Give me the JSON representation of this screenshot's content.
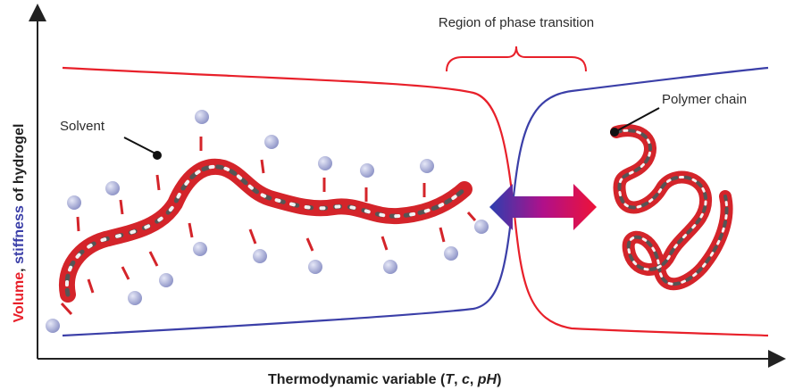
{
  "labels": {
    "region": "Region of phase transition",
    "solvent": "Solvent",
    "polymer_chain": "Polymer chain",
    "x_axis": "Thermodynamic variable",
    "x_vars": [
      "T",
      "c",
      "pH"
    ],
    "y_axis": {
      "part1": "Volume",
      "sep": ", ",
      "part2": "stiffness",
      "part3": " of hydrogel"
    }
  },
  "colors": {
    "volume": "#e8202a",
    "stiffness": "#3b3fa8",
    "solvent": "#aab0d8",
    "polymer_red": "#d4242a",
    "polymer_gray": "#555555"
  }
}
